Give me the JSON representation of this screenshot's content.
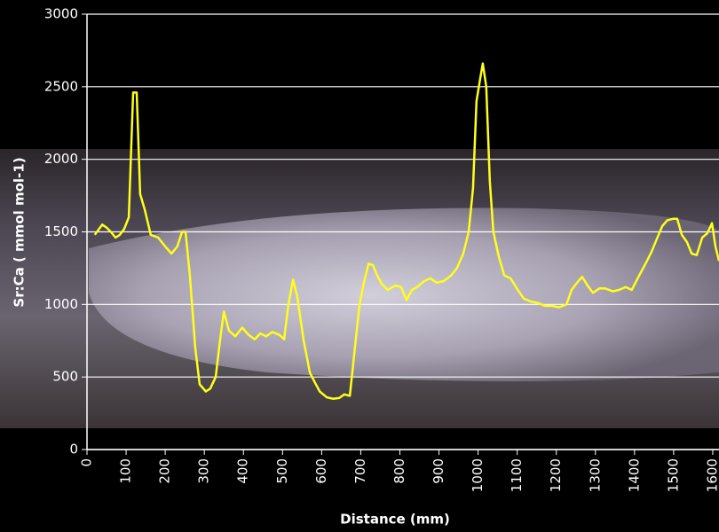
{
  "chart_data": {
    "type": "line",
    "xlabel": "Distance (mm)",
    "ylabel": "Sr:Ca ( mmol mol-1)",
    "x": [
      20,
      39,
      50,
      61,
      73,
      84,
      95,
      107,
      118,
      127,
      136,
      148,
      163,
      182,
      200,
      216,
      231,
      243,
      252,
      263,
      277,
      288,
      304,
      315,
      329,
      340,
      350,
      363,
      379,
      397,
      413,
      429,
      443,
      458,
      474,
      492,
      504,
      515,
      527,
      538,
      554,
      570,
      583,
      595,
      613,
      629,
      645,
      658,
      672,
      685,
      697,
      708,
      720,
      731,
      742,
      754,
      769,
      788,
      803,
      817,
      831,
      844,
      862,
      878,
      894,
      912,
      931,
      946,
      962,
      976,
      987,
      996,
      1005,
      1012,
      1021,
      1030,
      1039,
      1053,
      1067,
      1083,
      1099,
      1117,
      1135,
      1153,
      1171,
      1189,
      1207,
      1226,
      1239,
      1253,
      1266,
      1280,
      1294,
      1310,
      1325,
      1344,
      1360,
      1378,
      1393,
      1412,
      1428,
      1443,
      1457,
      1471,
      1484,
      1498,
      1509,
      1521,
      1534,
      1546,
      1559,
      1573,
      1586,
      1598,
      1607,
      1616
    ],
    "series": [
      {
        "color": "#ffff1a",
        "values": [
          1480,
          1550,
          1530,
          1500,
          1460,
          1480,
          1520,
          1600,
          2460,
          2460,
          1760,
          1650,
          1480,
          1460,
          1400,
          1350,
          1400,
          1500,
          1500,
          1200,
          700,
          450,
          400,
          420,
          500,
          750,
          950,
          820,
          780,
          840,
          790,
          760,
          800,
          780,
          810,
          790,
          760,
          1000,
          1170,
          1050,
          750,
          530,
          460,
          400,
          360,
          350,
          355,
          380,
          370,
          700,
          1000,
          1150,
          1280,
          1270,
          1200,
          1140,
          1100,
          1130,
          1120,
          1030,
          1100,
          1120,
          1160,
          1180,
          1150,
          1160,
          1200,
          1250,
          1350,
          1500,
          1800,
          2400,
          2550,
          2660,
          2500,
          1850,
          1500,
          1330,
          1200,
          1180,
          1110,
          1040,
          1020,
          1010,
          990,
          990,
          980,
          1000,
          1100,
          1150,
          1190,
          1130,
          1080,
          1110,
          1110,
          1090,
          1100,
          1120,
          1100,
          1200,
          1280,
          1360,
          1450,
          1540,
          1580,
          1590,
          1590,
          1480,
          1430,
          1350,
          1340,
          1460,
          1490,
          1560,
          1400,
          1300
        ]
      }
    ],
    "xlim": [
      0,
      1616
    ],
    "xticks": [
      0,
      100,
      200,
      300,
      400,
      500,
      600,
      700,
      800,
      900,
      1000,
      1100,
      1200,
      1300,
      1400,
      1500,
      1600
    ],
    "ylim": [
      0,
      3000
    ],
    "yticks": [
      0,
      500,
      1000,
      1500,
      2000,
      2500,
      3000
    ],
    "grid": true
  }
}
